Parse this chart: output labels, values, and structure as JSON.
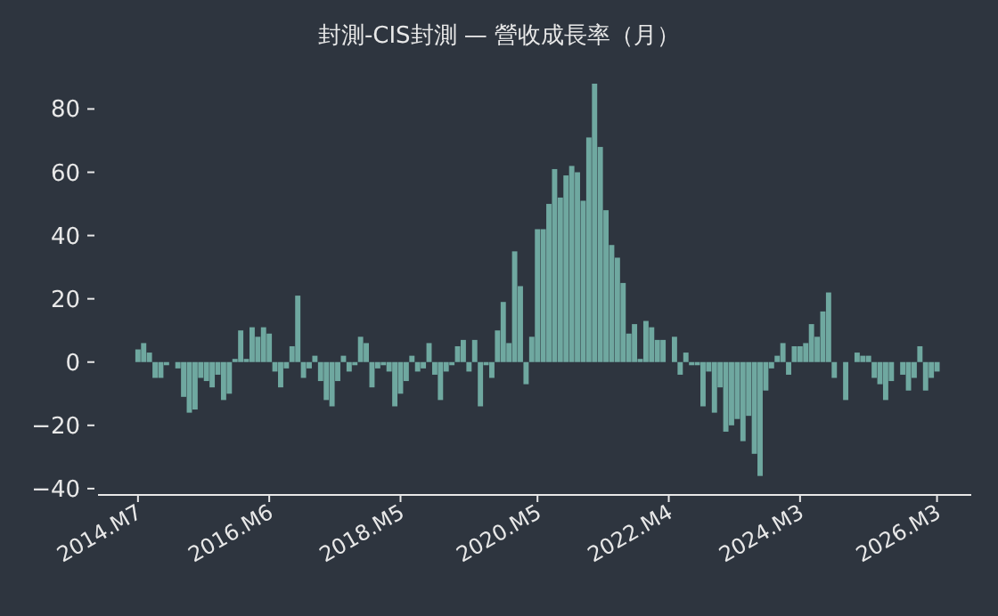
{
  "chart_data": {
    "type": "bar",
    "title": "封測-CIS封測 — 營收成長率（月）",
    "color": "#6fa8a0",
    "x": [
      "2014-07",
      "2014-08",
      "2014-09",
      "2014-10",
      "2014-11",
      "2014-12",
      "2015-01",
      "2015-02",
      "2015-03",
      "2015-04",
      "2015-05",
      "2015-06",
      "2015-07",
      "2015-08",
      "2015-09",
      "2015-10",
      "2015-11",
      "2015-12",
      "2016-01",
      "2016-02",
      "2016-03",
      "2016-04",
      "2016-05",
      "2016-06",
      "2016-07",
      "2016-08",
      "2016-09",
      "2016-10",
      "2016-11",
      "2016-12",
      "2017-01",
      "2017-02",
      "2017-03",
      "2017-04",
      "2017-05",
      "2017-06",
      "2017-07",
      "2017-08",
      "2017-09",
      "2017-10",
      "2017-11",
      "2017-12",
      "2018-01",
      "2018-02",
      "2018-03",
      "2018-04",
      "2018-05",
      "2018-06",
      "2018-07",
      "2018-08",
      "2018-09",
      "2018-10",
      "2018-11",
      "2018-12",
      "2019-01",
      "2019-02",
      "2019-03",
      "2019-04",
      "2019-05",
      "2019-06",
      "2019-07",
      "2019-08",
      "2019-09",
      "2019-10",
      "2019-11",
      "2019-12",
      "2020-01",
      "2020-02",
      "2020-03",
      "2020-04",
      "2020-05",
      "2020-06",
      "2020-07",
      "2020-08",
      "2020-09",
      "2020-10",
      "2020-11",
      "2020-12",
      "2021-01",
      "2021-02",
      "2021-03",
      "2021-04",
      "2021-05",
      "2021-06",
      "2021-07",
      "2021-08",
      "2021-09",
      "2021-10",
      "2021-11",
      "2021-12",
      "2022-01",
      "2022-02",
      "2022-03",
      "2022-04",
      "2022-05",
      "2022-06",
      "2022-07",
      "2022-08",
      "2022-09",
      "2022-10",
      "2022-11",
      "2022-12",
      "2023-01",
      "2023-02",
      "2023-03",
      "2023-04",
      "2023-05",
      "2023-06",
      "2023-07",
      "2023-08",
      "2023-09",
      "2023-10",
      "2023-11",
      "2023-12",
      "2024-01",
      "2024-02",
      "2024-03",
      "2024-04",
      "2024-05",
      "2024-06",
      "2024-07",
      "2024-08",
      "2024-09",
      "2024-10",
      "2024-11",
      "2024-12",
      "2025-01",
      "2025-02",
      "2025-03",
      "2025-04",
      "2025-05",
      "2025-06",
      "2025-07",
      "2025-08",
      "2025-09",
      "2025-10",
      "2025-11",
      "2025-12",
      "2026-01",
      "2026-02",
      "2026-03"
    ],
    "values": [
      4,
      6,
      3,
      -5,
      -5,
      -1,
      0,
      -2,
      -11,
      -16,
      -15,
      -5,
      -6,
      -8,
      -4,
      -12,
      -10,
      1,
      10,
      1,
      11,
      8,
      11,
      9,
      -3,
      -8,
      -2,
      5,
      21,
      -5,
      -2,
      2,
      -6,
      -12,
      -14,
      -6,
      2,
      -3,
      -1,
      8,
      6,
      -8,
      -2,
      -1,
      -3,
      -14,
      -10,
      -6,
      2,
      -3,
      -2,
      6,
      -4,
      -12,
      -3,
      -1,
      5,
      7,
      -3,
      7,
      -14,
      -1,
      -5,
      10,
      19,
      6,
      35,
      24,
      -7,
      8,
      42,
      42,
      50,
      61,
      52,
      59,
      62,
      60,
      51,
      71,
      88,
      68,
      48,
      37,
      33,
      25,
      9,
      12,
      1,
      13,
      11,
      7,
      7,
      0,
      8,
      -4,
      3,
      -1,
      -1,
      -14,
      -3,
      -16,
      -8,
      -22,
      -20,
      -18,
      -25,
      -17,
      -29,
      -36,
      -9,
      -2,
      2,
      6,
      -4,
      5,
      5,
      6,
      12,
      8,
      16,
      22,
      -5,
      0,
      -12,
      0,
      3,
      2,
      2,
      -5,
      -7,
      -12,
      -6,
      0,
      -4,
      -9,
      -5,
      5,
      -9,
      -5,
      -3
    ],
    "xlim": [
      "2013-12",
      "2026-09"
    ],
    "ylim": [
      -42,
      88
    ],
    "xticks": [
      {
        "value": "2014-07",
        "label": "2014.M7"
      },
      {
        "value": "2016-06",
        "label": "2016.M6"
      },
      {
        "value": "2018-05",
        "label": "2018.M5"
      },
      {
        "value": "2020-05",
        "label": "2020.M5"
      },
      {
        "value": "2022-04",
        "label": "2022.M4"
      },
      {
        "value": "2024-03",
        "label": "2024.M3"
      },
      {
        "value": "2026-03",
        "label": "2026.M3"
      }
    ],
    "yticks": [
      -40,
      -20,
      0,
      20,
      40,
      60,
      80
    ]
  }
}
